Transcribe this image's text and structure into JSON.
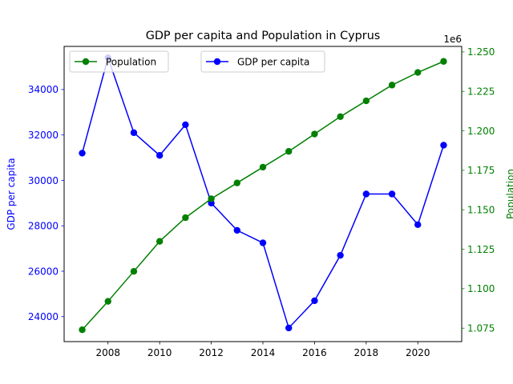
{
  "chart_data": {
    "type": "line",
    "title": "GDP per capita and Population in Cyprus",
    "x": [
      2007,
      2008,
      2009,
      2010,
      2011,
      2012,
      2013,
      2014,
      2015,
      2016,
      2017,
      2018,
      2019,
      2020,
      2021
    ],
    "xlim": [
      2006.3,
      2021.7
    ],
    "xticks": [
      "2008",
      "2010",
      "2012",
      "2014",
      "2016",
      "2018",
      "2020"
    ],
    "xtick_values": [
      2008,
      2010,
      2012,
      2014,
      2016,
      2018,
      2020
    ],
    "left_axis": {
      "label": "GDP per capita",
      "color": "#0000ff",
      "ylim": [
        22900,
        35900
      ],
      "ticks": [
        "24000",
        "26000",
        "28000",
        "30000",
        "32000",
        "34000"
      ],
      "tick_values": [
        24000,
        26000,
        28000,
        30000,
        32000,
        34000
      ]
    },
    "right_axis": {
      "label": "Population",
      "color": "#008000",
      "offset_text": "1e6",
      "ylim": [
        1.0665,
        1.2535
      ],
      "ticks": [
        "1.075",
        "1.100",
        "1.125",
        "1.150",
        "1.175",
        "1.200",
        "1.225",
        "1.250"
      ],
      "tick_values": [
        1.075,
        1.1,
        1.125,
        1.15,
        1.175,
        1.2,
        1.225,
        1.25
      ]
    },
    "series": [
      {
        "name": "GDP per capita",
        "axis": "left",
        "color": "#0000ff",
        "values": [
          31200,
          35400,
          32100,
          31100,
          32450,
          29000,
          27800,
          27250,
          23500,
          24700,
          26700,
          29400,
          29400,
          28050,
          31550
        ]
      },
      {
        "name": "Population",
        "axis": "right",
        "color": "#008000",
        "values": [
          1.074,
          1.092,
          1.111,
          1.13,
          1.145,
          1.157,
          1.167,
          1.177,
          1.187,
          1.198,
          1.209,
          1.219,
          1.229,
          1.237,
          1.244
        ]
      }
    ],
    "legends": [
      {
        "series": "Population",
        "placement": "upper-left"
      },
      {
        "series": "GDP per capita",
        "placement": "upper-center"
      }
    ],
    "grid": false
  }
}
